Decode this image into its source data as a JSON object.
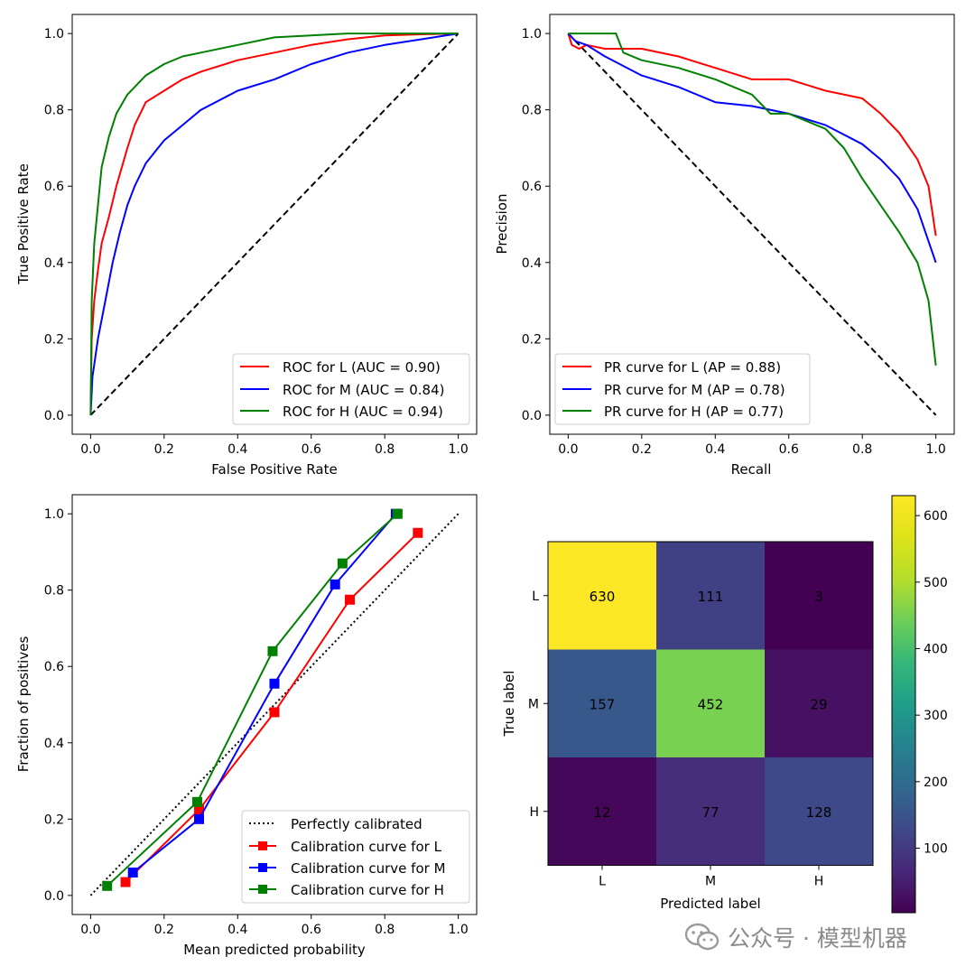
{
  "chart_data": [
    {
      "type": "line",
      "id": "roc",
      "xlabel": "False Positive Rate",
      "ylabel": "True Positive Rate",
      "xlim": [
        -0.05,
        1.05
      ],
      "ylim": [
        -0.05,
        1.05
      ],
      "xticks": [
        "0.0",
        "0.2",
        "0.4",
        "0.6",
        "0.8",
        "1.0"
      ],
      "yticks": [
        "0.0",
        "0.2",
        "0.4",
        "0.6",
        "0.8",
        "1.0"
      ],
      "reference_line": {
        "x": [
          0,
          1
        ],
        "y": [
          0,
          1
        ],
        "style": "dashed",
        "color": "#000000"
      },
      "legend_position": "lower-right",
      "series": [
        {
          "name": "ROC for L (AUC = 0.90)",
          "color": "#ff0000",
          "x": [
            0,
            0.003,
            0.01,
            0.02,
            0.03,
            0.05,
            0.07,
            0.1,
            0.12,
            0.15,
            0.2,
            0.25,
            0.3,
            0.4,
            0.5,
            0.6,
            0.7,
            0.8,
            0.9,
            1.0
          ],
          "y": [
            0,
            0.2,
            0.3,
            0.38,
            0.45,
            0.52,
            0.6,
            0.7,
            0.76,
            0.82,
            0.85,
            0.88,
            0.9,
            0.93,
            0.95,
            0.97,
            0.985,
            0.995,
            0.998,
            1.0
          ]
        },
        {
          "name": "ROC for M (AUC = 0.84)",
          "color": "#0000ff",
          "x": [
            0,
            0.005,
            0.02,
            0.04,
            0.06,
            0.08,
            0.1,
            0.12,
            0.15,
            0.2,
            0.25,
            0.3,
            0.4,
            0.5,
            0.6,
            0.7,
            0.8,
            0.9,
            1.0
          ],
          "y": [
            0,
            0.1,
            0.2,
            0.3,
            0.4,
            0.48,
            0.55,
            0.6,
            0.66,
            0.72,
            0.76,
            0.8,
            0.85,
            0.88,
            0.92,
            0.95,
            0.97,
            0.985,
            1.0
          ]
        },
        {
          "name": "ROC for H (AUC = 0.94)",
          "color": "#008000",
          "x": [
            0,
            0.003,
            0.01,
            0.02,
            0.03,
            0.05,
            0.07,
            0.1,
            0.15,
            0.2,
            0.25,
            0.3,
            0.4,
            0.5,
            0.6,
            0.7,
            0.8,
            1.0
          ],
          "y": [
            0,
            0.3,
            0.45,
            0.55,
            0.65,
            0.73,
            0.79,
            0.84,
            0.89,
            0.92,
            0.94,
            0.95,
            0.97,
            0.99,
            0.995,
            1.0,
            1.0,
            1.0
          ]
        }
      ]
    },
    {
      "type": "line",
      "id": "pr",
      "xlabel": "Recall",
      "ylabel": "Precision",
      "xlim": [
        -0.05,
        1.05
      ],
      "ylim": [
        -0.05,
        1.05
      ],
      "xticks": [
        "0.0",
        "0.2",
        "0.4",
        "0.6",
        "0.8",
        "1.0"
      ],
      "yticks": [
        "0.0",
        "0.2",
        "0.4",
        "0.6",
        "0.8",
        "1.0"
      ],
      "reference_line": {
        "x": [
          0,
          1
        ],
        "y": [
          1,
          0
        ],
        "style": "dashed",
        "color": "#000000"
      },
      "legend_position": "lower-left",
      "series": [
        {
          "name": "PR curve for L (AP = 0.88)",
          "color": "#ff0000",
          "x": [
            0,
            0.01,
            0.03,
            0.05,
            0.1,
            0.2,
            0.3,
            0.4,
            0.5,
            0.6,
            0.7,
            0.8,
            0.85,
            0.9,
            0.95,
            0.98,
            1.0
          ],
          "y": [
            1.0,
            0.97,
            0.96,
            0.97,
            0.96,
            0.96,
            0.94,
            0.91,
            0.88,
            0.88,
            0.85,
            0.83,
            0.79,
            0.74,
            0.67,
            0.6,
            0.47
          ]
        },
        {
          "name": "PR curve for M (AP = 0.78)",
          "color": "#0000ff",
          "x": [
            0,
            0.02,
            0.05,
            0.1,
            0.2,
            0.3,
            0.4,
            0.5,
            0.6,
            0.7,
            0.8,
            0.85,
            0.9,
            0.95,
            1.0
          ],
          "y": [
            1.0,
            0.98,
            0.97,
            0.94,
            0.89,
            0.86,
            0.82,
            0.81,
            0.79,
            0.76,
            0.71,
            0.67,
            0.62,
            0.54,
            0.4
          ]
        },
        {
          "name": "PR curve for H (AP = 0.77)",
          "color": "#008000",
          "x": [
            0,
            0.05,
            0.13,
            0.15,
            0.2,
            0.3,
            0.4,
            0.5,
            0.55,
            0.6,
            0.7,
            0.75,
            0.8,
            0.85,
            0.9,
            0.95,
            0.98,
            1.0
          ],
          "y": [
            1.0,
            1.0,
            1.0,
            0.95,
            0.93,
            0.91,
            0.88,
            0.84,
            0.79,
            0.79,
            0.75,
            0.7,
            0.62,
            0.55,
            0.48,
            0.4,
            0.3,
            0.13
          ]
        }
      ]
    },
    {
      "type": "line",
      "id": "calibration",
      "xlabel": "Mean predicted probability",
      "ylabel": "Fraction of positives",
      "xlim": [
        -0.05,
        1.05
      ],
      "ylim": [
        -0.05,
        1.05
      ],
      "xticks": [
        "0.0",
        "0.2",
        "0.4",
        "0.6",
        "0.8",
        "1.0"
      ],
      "yticks": [
        "0.0",
        "0.2",
        "0.4",
        "0.6",
        "0.8",
        "1.0"
      ],
      "reference_line": {
        "name": "Perfectly calibrated",
        "x": [
          0,
          1
        ],
        "y": [
          0,
          1
        ],
        "style": "dotted",
        "color": "#000000"
      },
      "legend_position": "lower-right",
      "series": [
        {
          "name": "Calibration curve for L",
          "color": "#ff0000",
          "marker": "square",
          "x": [
            0.095,
            0.295,
            0.5,
            0.705,
            0.89
          ],
          "y": [
            0.035,
            0.225,
            0.48,
            0.775,
            0.95
          ]
        },
        {
          "name": "Calibration curve for M",
          "color": "#0000ff",
          "marker": "square",
          "x": [
            0.115,
            0.295,
            0.5,
            0.665,
            0.83
          ],
          "y": [
            0.06,
            0.2,
            0.555,
            0.815,
            1.0
          ]
        },
        {
          "name": "Calibration curve for H",
          "color": "#008000",
          "marker": "square",
          "x": [
            0.045,
            0.29,
            0.495,
            0.685,
            0.835
          ],
          "y": [
            0.025,
            0.245,
            0.64,
            0.87,
            1.0
          ]
        }
      ]
    },
    {
      "type": "heatmap",
      "id": "confusion",
      "xlabel": "Predicted label",
      "ylabel": "True label",
      "row_labels": [
        "L",
        "M",
        "H"
      ],
      "col_labels": [
        "L",
        "M",
        "H"
      ],
      "matrix": [
        [
          630,
          111,
          3
        ],
        [
          157,
          452,
          29
        ],
        [
          12,
          77,
          128
        ]
      ],
      "vmin": 3,
      "vmax": 630,
      "colormap": "viridis",
      "colorbar_ticks": [
        "100",
        "200",
        "300",
        "400",
        "500",
        "600"
      ]
    }
  ],
  "watermark": {
    "text": "公众号 · 模型机器",
    "icon": "wechat-icon"
  }
}
